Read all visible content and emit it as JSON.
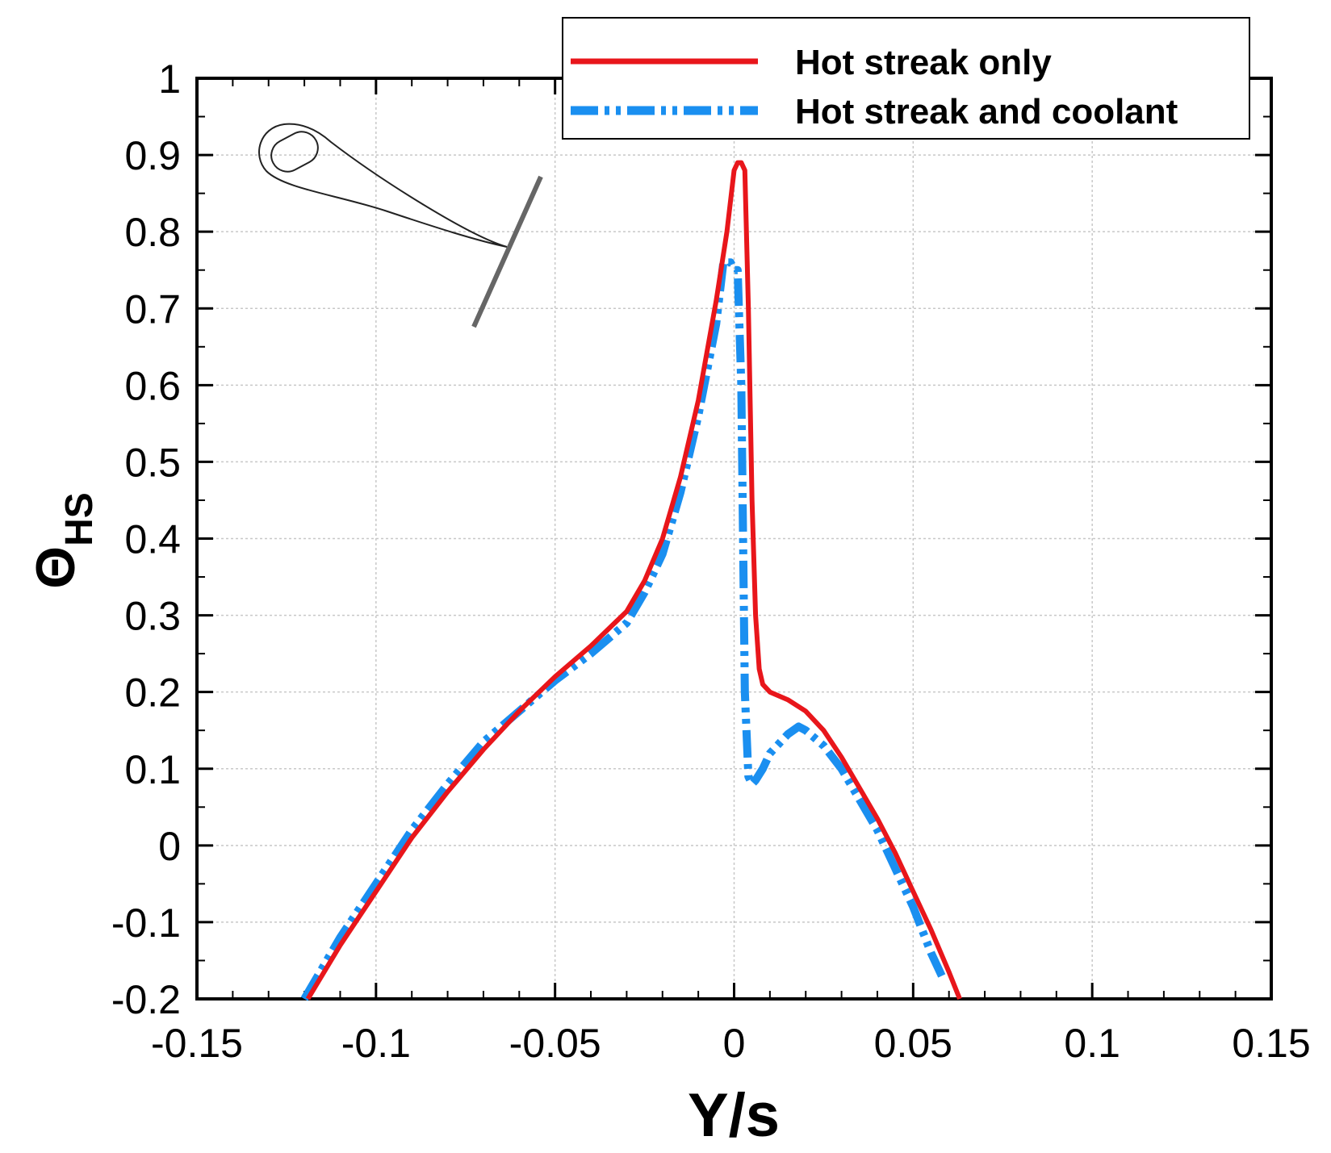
{
  "chart_data": {
    "type": "line",
    "xlabel": "Y/s",
    "ylabel_symbol": "Θ",
    "ylabel_subscript": "HS",
    "xlim": [
      -0.15,
      0.15
    ],
    "ylim": [
      -0.2,
      1.0
    ],
    "xticks": [
      "-0.15",
      "-0.1",
      "-0.05",
      "0",
      "0.05",
      "0.1",
      "0.15"
    ],
    "yticks": [
      "1",
      "0.9",
      "0.8",
      "0.7",
      "0.6",
      "0.5",
      "0.4",
      "0.3",
      "0.2",
      "0.1",
      "0",
      "-0.1",
      "-0.2"
    ],
    "grid": true,
    "legend_position": "top-right",
    "series": [
      {
        "name": "Hot streak only",
        "color": "#e8161b",
        "style": "solid",
        "x": [
          -0.119,
          -0.11,
          -0.1,
          -0.09,
          -0.08,
          -0.07,
          -0.06,
          -0.05,
          -0.04,
          -0.03,
          -0.025,
          -0.02,
          -0.015,
          -0.01,
          -0.005,
          -0.002,
          0.0,
          0.001,
          0.002,
          0.003,
          0.004,
          0.005,
          0.006,
          0.007,
          0.008,
          0.01,
          0.015,
          0.02,
          0.025,
          0.03,
          0.035,
          0.04,
          0.045,
          0.05,
          0.055,
          0.06,
          0.063
        ],
        "y": [
          -0.2,
          -0.13,
          -0.06,
          0.01,
          0.07,
          0.125,
          0.175,
          0.22,
          0.26,
          0.305,
          0.345,
          0.4,
          0.48,
          0.58,
          0.71,
          0.8,
          0.88,
          0.89,
          0.89,
          0.88,
          0.7,
          0.45,
          0.3,
          0.23,
          0.21,
          0.2,
          0.19,
          0.175,
          0.15,
          0.115,
          0.075,
          0.035,
          -0.01,
          -0.06,
          -0.11,
          -0.165,
          -0.2
        ]
      },
      {
        "name": "Hot streak and coolant",
        "color": "#1a8ff0",
        "style": "dash-dot-dot",
        "x": [
          -0.12,
          -0.11,
          -0.1,
          -0.09,
          -0.08,
          -0.07,
          -0.06,
          -0.05,
          -0.04,
          -0.03,
          -0.025,
          -0.02,
          -0.015,
          -0.01,
          -0.005,
          -0.003,
          -0.001,
          0.0,
          0.001,
          0.002,
          0.003,
          0.004,
          0.005,
          0.006,
          0.008,
          0.01,
          0.015,
          0.018,
          0.02,
          0.025,
          0.03,
          0.035,
          0.04,
          0.045,
          0.05,
          0.055,
          0.058
        ],
        "y": [
          -0.2,
          -0.12,
          -0.05,
          0.02,
          0.08,
          0.135,
          0.175,
          0.215,
          0.25,
          0.29,
          0.33,
          0.38,
          0.46,
          0.56,
          0.68,
          0.76,
          0.76,
          0.75,
          0.75,
          0.6,
          0.2,
          0.09,
          0.08,
          0.085,
          0.1,
          0.12,
          0.145,
          0.155,
          0.15,
          0.13,
          0.1,
          0.06,
          0.02,
          -0.03,
          -0.08,
          -0.14,
          -0.17
        ]
      }
    ]
  },
  "inset_icon": "airfoil-with-cut-line-icon"
}
